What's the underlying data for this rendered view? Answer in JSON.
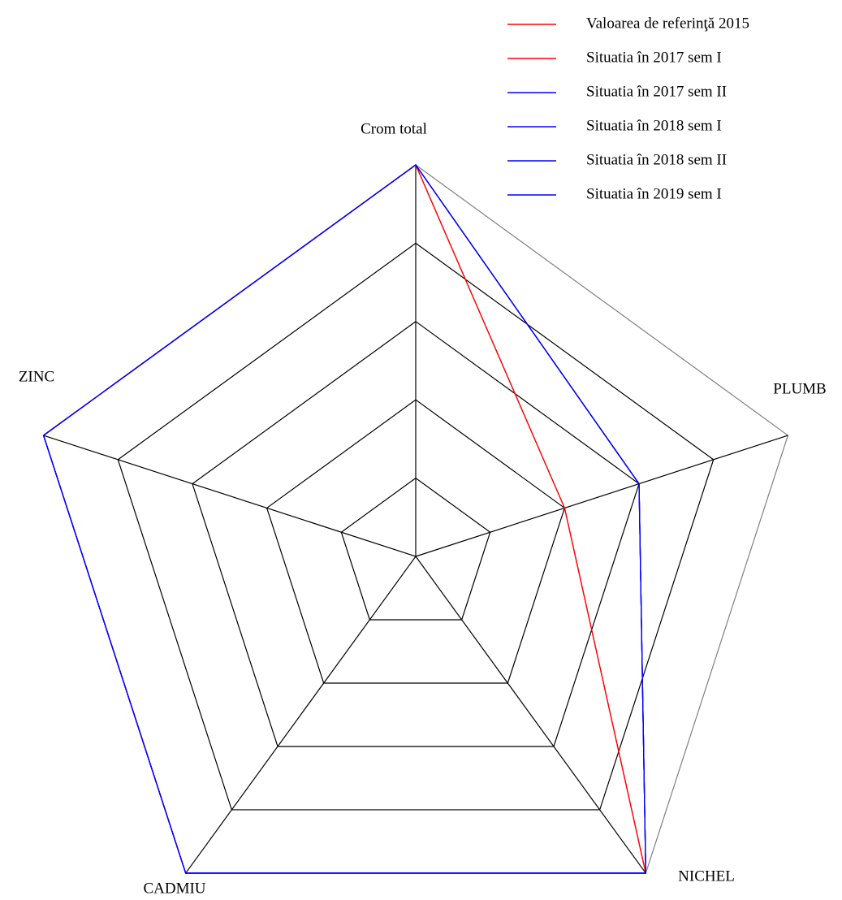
{
  "chart_data": {
    "type": "radar",
    "categories": [
      "Crom total",
      "PLUMB",
      "NICHEL",
      "CADMIU",
      "ZINC"
    ],
    "rlim": [
      0,
      5
    ],
    "rticks": [
      1,
      2,
      3,
      4,
      5
    ],
    "legend": "top-right",
    "series": [
      {
        "name": "Valoarea de referinţă 2015",
        "color": "#ff0000",
        "values": [
          5,
          2,
          5,
          5,
          5
        ]
      },
      {
        "name": "Situatia în 2017 sem I",
        "color": "#ff0000",
        "values": [
          5,
          2,
          5,
          5,
          5
        ]
      },
      {
        "name": "Situatia în 2017 sem II",
        "color": "#0000ff",
        "values": [
          5,
          3,
          5,
          5,
          5
        ]
      },
      {
        "name": "Situatia în 2018 sem I",
        "color": "#0000ff",
        "values": [
          5,
          3,
          5,
          5,
          5
        ]
      },
      {
        "name": "Situatia în 2018 sem II",
        "color": "#0000ff",
        "values": [
          5,
          3,
          5,
          5,
          5
        ]
      },
      {
        "name": "Situatia în 2019 sem I",
        "color": "#0000ff",
        "values": [
          5,
          3,
          5,
          5,
          5
        ]
      }
    ]
  }
}
